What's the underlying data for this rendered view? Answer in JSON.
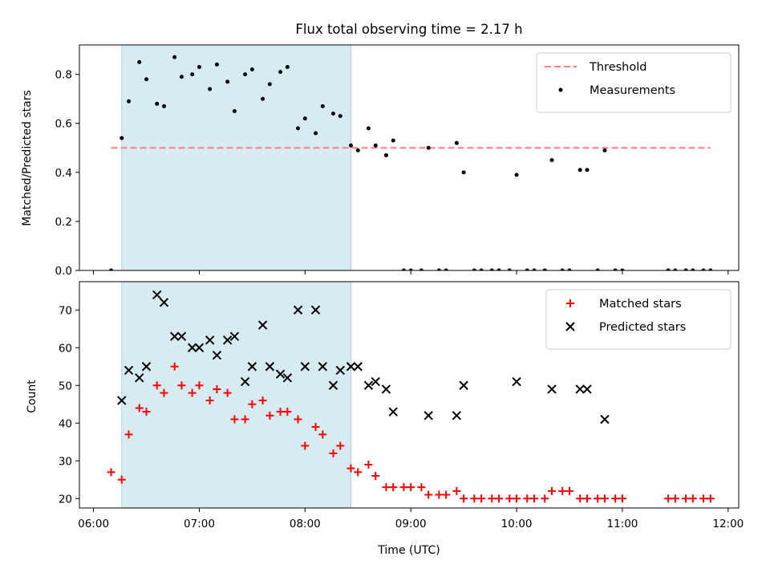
{
  "chart_data": [
    {
      "type": "scatter",
      "title": "Flux total observing time = 2.17 h",
      "xlabel": "",
      "ylabel": "Matched/Predicted stars",
      "ylim": [
        0,
        0.92
      ],
      "xlim": [
        "05:52",
        "12:06"
      ],
      "yticks": [
        "0.0",
        "0.2",
        "0.4",
        "0.6",
        "0.8"
      ],
      "shaded_interval": [
        "06:16",
        "08:26"
      ],
      "threshold": {
        "name": "Threshold",
        "value": 0.5,
        "color": "#ff7f7f"
      },
      "legend": {
        "placement": "top-right",
        "entries": [
          "Threshold",
          "Measurements"
        ]
      },
      "series": [
        {
          "name": "Measurements",
          "color": "#000000",
          "x": [
            "06:10",
            "06:16",
            "06:20",
            "06:26",
            "06:30",
            "06:36",
            "06:40",
            "06:46",
            "06:50",
            "06:56",
            "07:00",
            "07:06",
            "07:10",
            "07:16",
            "07:20",
            "07:26",
            "07:30",
            "07:36",
            "07:40",
            "07:46",
            "07:50",
            "07:56",
            "08:00",
            "08:06",
            "08:10",
            "08:16",
            "08:20",
            "08:26",
            "08:30",
            "08:36",
            "08:40",
            "08:46",
            "08:50",
            "08:56",
            "09:00",
            "09:06",
            "09:10",
            "09:16",
            "09:20",
            "09:26",
            "09:30",
            "09:36",
            "09:40",
            "09:46",
            "09:50",
            "09:56",
            "10:00",
            "10:06",
            "10:10",
            "10:16",
            "10:20",
            "10:26",
            "10:30",
            "10:36",
            "10:40",
            "10:46",
            "10:50",
            "10:56",
            "11:00",
            "11:26",
            "11:30",
            "11:36",
            "11:40",
            "11:46",
            "11:50"
          ],
          "y": [
            0.0,
            0.54,
            0.69,
            0.85,
            0.78,
            0.68,
            0.67,
            0.87,
            0.79,
            0.8,
            0.83,
            0.74,
            0.84,
            0.77,
            0.65,
            0.8,
            0.82,
            0.7,
            0.76,
            0.81,
            0.83,
            0.58,
            0.62,
            0.56,
            0.67,
            0.64,
            0.63,
            0.51,
            0.49,
            0.58,
            0.51,
            0.47,
            0.53,
            0.0,
            0.0,
            0.0,
            0.5,
            0.0,
            0.0,
            0.52,
            0.4,
            0.0,
            0.0,
            0.0,
            0.0,
            0.0,
            0.39,
            0.0,
            0.0,
            0.0,
            0.45,
            0.0,
            0.0,
            0.41,
            0.41,
            0.0,
            0.49,
            0.0,
            0.0,
            0.0,
            0.0,
            0.0,
            0.0,
            0.0,
            0.0
          ]
        }
      ]
    },
    {
      "type": "scatter",
      "title": "",
      "xlabel": "Time (UTC)",
      "ylabel": "Count",
      "ylim": [
        17.5,
        77.5
      ],
      "xlim": [
        "05:52",
        "12:06"
      ],
      "yticks": [
        "20",
        "30",
        "40",
        "50",
        "60",
        "70"
      ],
      "xticks": [
        "06:00",
        "07:00",
        "08:00",
        "09:00",
        "10:00",
        "11:00",
        "12:00"
      ],
      "shaded_interval": [
        "06:16",
        "08:26"
      ],
      "legend": {
        "placement": "top-right",
        "entries": [
          "Matched stars",
          "Predicted stars"
        ]
      },
      "series": [
        {
          "name": "Matched stars",
          "marker": "plus",
          "color": "#ff0000",
          "x": [
            "06:10",
            "06:16",
            "06:20",
            "06:26",
            "06:30",
            "06:36",
            "06:40",
            "06:46",
            "06:50",
            "06:56",
            "07:00",
            "07:06",
            "07:10",
            "07:16",
            "07:20",
            "07:26",
            "07:30",
            "07:36",
            "07:40",
            "07:46",
            "07:50",
            "07:56",
            "08:00",
            "08:06",
            "08:10",
            "08:16",
            "08:20",
            "08:26",
            "08:30",
            "08:36",
            "08:40",
            "08:46",
            "08:50",
            "08:56",
            "09:00",
            "09:06",
            "09:10",
            "09:16",
            "09:20",
            "09:26",
            "09:30",
            "09:36",
            "09:40",
            "09:46",
            "09:50",
            "09:56",
            "10:00",
            "10:06",
            "10:10",
            "10:16",
            "10:20",
            "10:26",
            "10:30",
            "10:36",
            "10:40",
            "10:46",
            "10:50",
            "10:56",
            "11:00",
            "11:26",
            "11:30",
            "11:36",
            "11:40",
            "11:46",
            "11:50"
          ],
          "y": [
            27,
            25,
            37,
            44,
            43,
            50,
            48,
            55,
            50,
            48,
            50,
            46,
            49,
            48,
            41,
            41,
            45,
            46,
            42,
            43,
            43,
            41,
            34,
            39,
            37,
            32,
            34,
            28,
            27,
            29,
            26,
            23,
            23,
            23,
            23,
            23,
            21,
            21,
            21,
            22,
            20,
            20,
            20,
            20,
            20,
            20,
            20,
            20,
            20,
            20,
            22,
            22,
            22,
            20,
            20,
            20,
            20,
            20,
            20,
            20,
            20,
            20,
            20,
            20,
            20
          ]
        },
        {
          "name": "Predicted stars",
          "marker": "x",
          "color": "#000000",
          "x": [
            "06:16",
            "06:20",
            "06:26",
            "06:30",
            "06:36",
            "06:40",
            "06:46",
            "06:50",
            "06:56",
            "07:00",
            "07:06",
            "07:10",
            "07:16",
            "07:20",
            "07:26",
            "07:30",
            "07:36",
            "07:40",
            "07:46",
            "07:50",
            "07:56",
            "08:00",
            "08:06",
            "08:10",
            "08:16",
            "08:20",
            "08:26",
            "08:30",
            "08:36",
            "08:40",
            "08:46",
            "08:50",
            "09:10",
            "09:26",
            "09:30",
            "10:00",
            "10:20",
            "10:36",
            "10:40",
            "10:50"
          ],
          "y": [
            46,
            54,
            52,
            55,
            74,
            72,
            63,
            63,
            60,
            60,
            62,
            58,
            62,
            63,
            51,
            55,
            66,
            55,
            53,
            52,
            70,
            55,
            70,
            55,
            50,
            54,
            55,
            55,
            50,
            51,
            49,
            43,
            42,
            42,
            50,
            51,
            49,
            49,
            49,
            41
          ]
        }
      ]
    }
  ]
}
